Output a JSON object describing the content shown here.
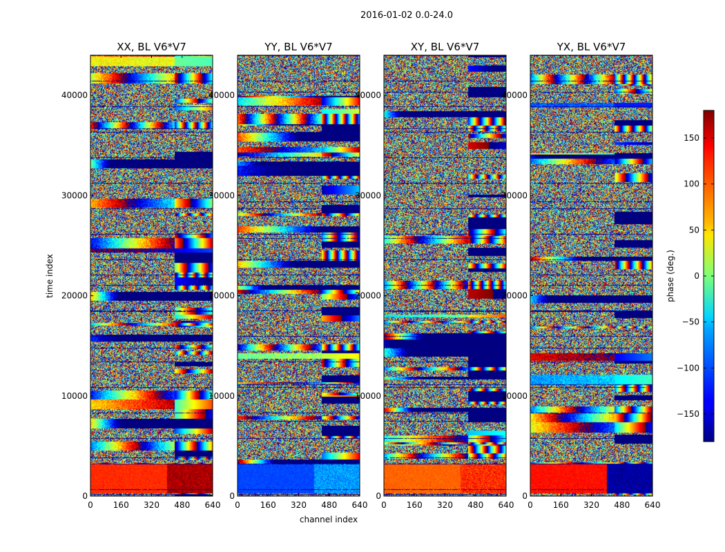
{
  "chart_data": {
    "type": "heatmap",
    "suptitle": "2016-01-02 0.0-24.0",
    "xlabel": "channel index",
    "ylabel": "time index",
    "xlim": [
      0,
      640
    ],
    "ylim": [
      0,
      44000
    ],
    "xticks": [
      0,
      160,
      320,
      480,
      640
    ],
    "yticks": [
      0,
      10000,
      20000,
      30000,
      40000
    ],
    "panels": [
      {
        "title": "XX, BL V6*V7",
        "low_block_phase": 120,
        "corner_phase": 165
      },
      {
        "title": "YY, BL V6*V7",
        "low_block_phase": -110,
        "corner_phase": -80
      },
      {
        "title": "XY, BL V6*V7",
        "low_block_phase": 100,
        "corner_phase": 120
      },
      {
        "title": "YX, BL V6*V7",
        "low_block_phase": 130,
        "corner_phase": -170
      }
    ],
    "colorbar": {
      "label": "phase (deg.)",
      "range": [
        -180,
        180
      ],
      "ticks": [
        -150,
        -100,
        -50,
        0,
        50,
        100,
        150
      ],
      "colormap": "jet"
    }
  }
}
